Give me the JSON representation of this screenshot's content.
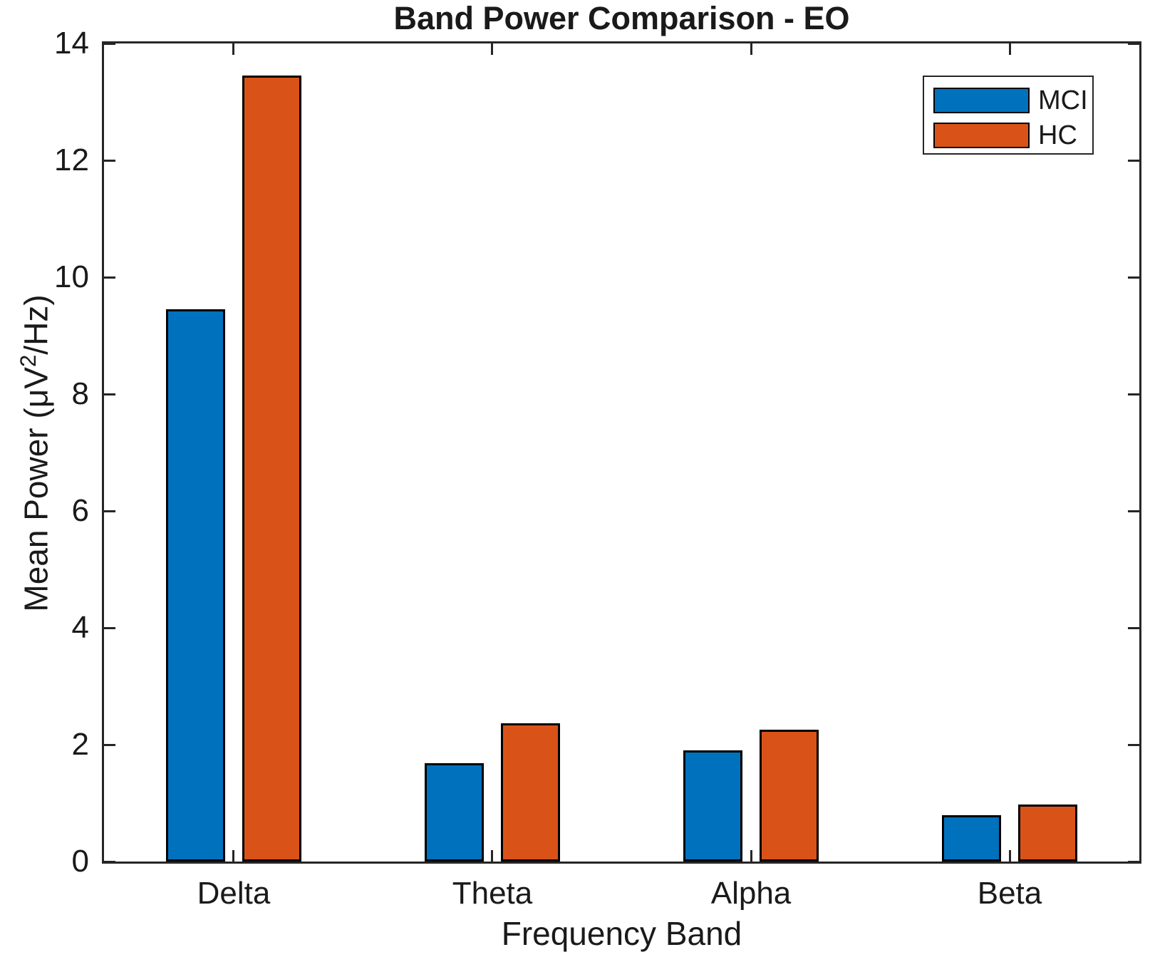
{
  "chart_data": {
    "type": "bar",
    "title": "Band Power Comparison - EO",
    "xlabel": "Frequency Band",
    "ylabel": "Mean Power (μV²/Hz)",
    "ylabel_parts": {
      "pre": "Mean Power (μV",
      "sup": "2",
      "post": "/Hz)"
    },
    "categories": [
      "Delta",
      "Theta",
      "Alpha",
      "Beta"
    ],
    "series": [
      {
        "name": "MCI",
        "color": "#0072BD",
        "values": [
          9.45,
          1.68,
          1.9,
          0.79
        ]
      },
      {
        "name": "HC",
        "color": "#D95319",
        "values": [
          13.45,
          2.37,
          2.25,
          0.97
        ]
      }
    ],
    "ylim": [
      0,
      14
    ],
    "yticks": [
      0,
      2,
      4,
      6,
      8,
      10,
      12,
      14
    ],
    "grid": false,
    "legend_position": "northeast",
    "bar_edge_color": "#000000",
    "axis_color": "#262626"
  }
}
